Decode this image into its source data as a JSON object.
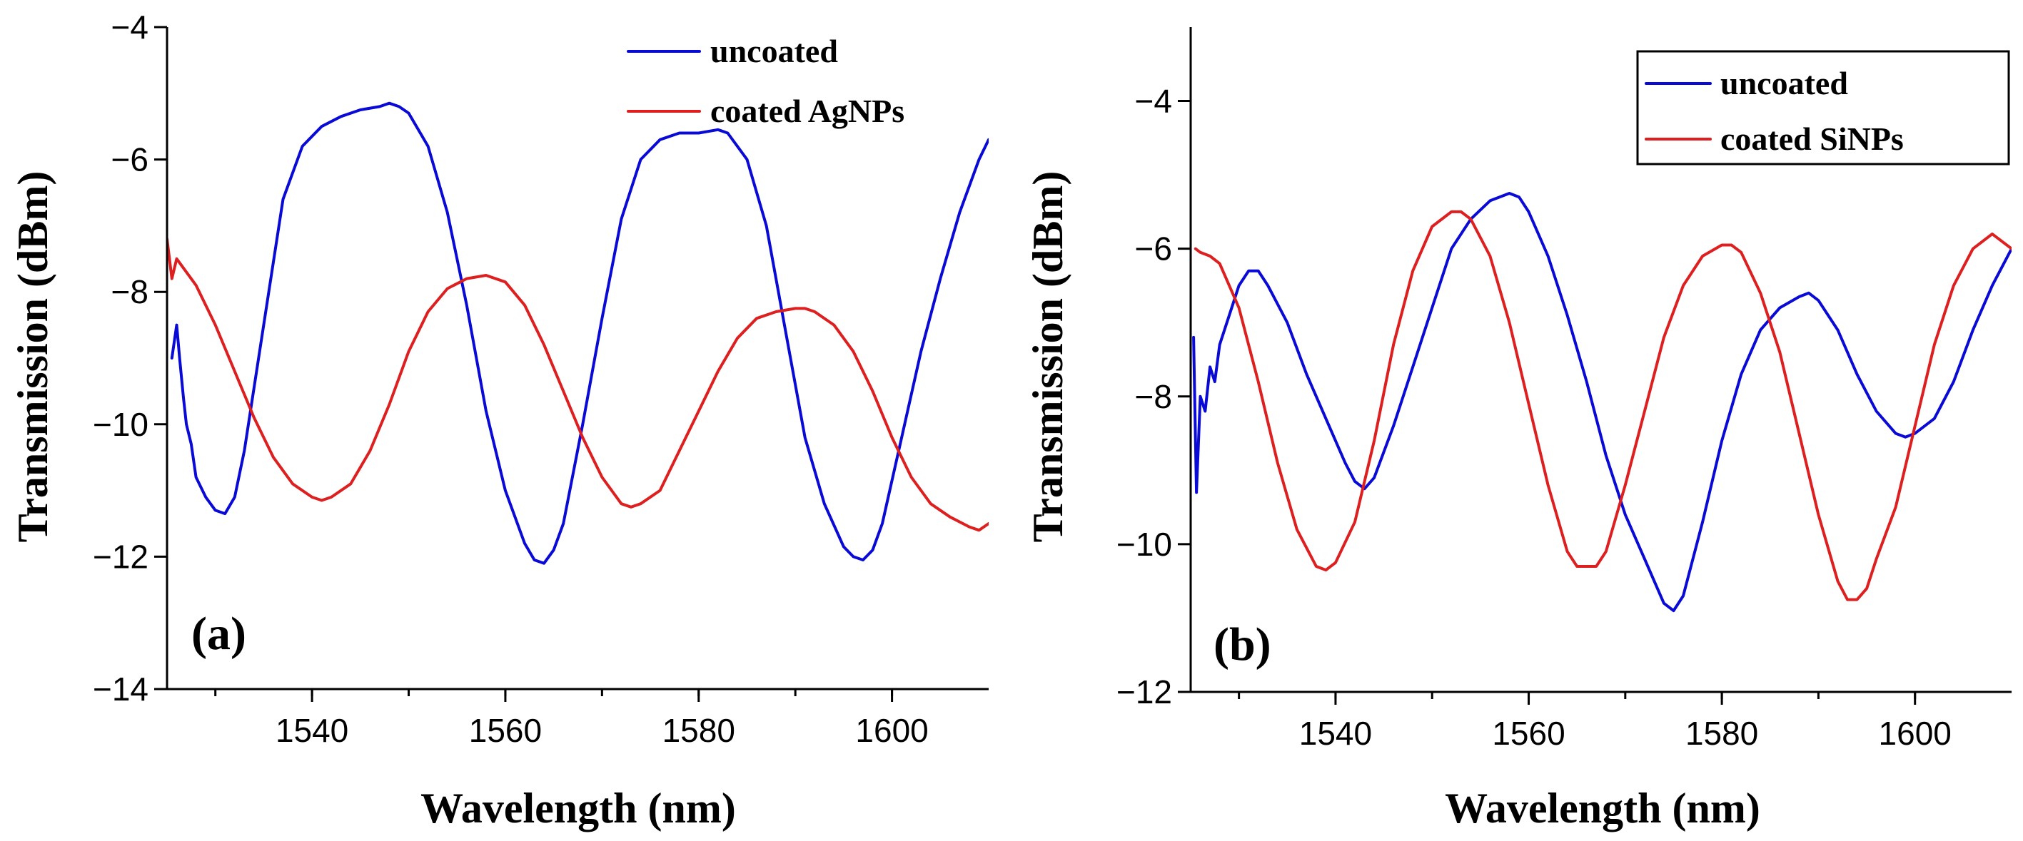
{
  "chart_data": [
    {
      "type": "line",
      "panel_label": "(a)",
      "xlabel": "Wavelength (nm)",
      "ylabel": "Transmission (dBm)",
      "xlim": [
        1525,
        1610
      ],
      "ylim": [
        -14,
        -4
      ],
      "xticks": [
        1540,
        1560,
        1580,
        1600
      ],
      "xtick_labels": [
        "1540",
        "1560",
        "1580",
        "1600"
      ],
      "yticks": [
        -14,
        -12,
        -10,
        -8,
        -6,
        -4
      ],
      "ytick_labels": [
        "−14",
        "−12",
        "−10",
        "−8",
        "−6",
        "−4"
      ],
      "legend_position": "top-right",
      "legend_frame": false,
      "series": [
        {
          "name": "uncoated",
          "color": "#0a0ad6",
          "x": [
            1525.5,
            1526,
            1526.3,
            1526.7,
            1527,
            1527.5,
            1528,
            1529,
            1530,
            1531,
            1532,
            1533,
            1535,
            1537,
            1539,
            1541,
            1543,
            1545,
            1547,
            1548,
            1549,
            1550,
            1552,
            1554,
            1556,
            1558,
            1560,
            1562,
            1563,
            1564,
            1565,
            1566,
            1568,
            1570,
            1572,
            1574,
            1576,
            1578,
            1580,
            1582,
            1583,
            1585,
            1587,
            1589,
            1591,
            1593,
            1595,
            1596,
            1597,
            1598,
            1599,
            1601,
            1603,
            1605,
            1607,
            1609,
            1610
          ],
          "y": [
            -9.0,
            -8.5,
            -9.0,
            -9.6,
            -10.0,
            -10.3,
            -10.8,
            -11.1,
            -11.3,
            -11.35,
            -11.1,
            -10.4,
            -8.5,
            -6.6,
            -5.8,
            -5.5,
            -5.35,
            -5.25,
            -5.2,
            -5.15,
            -5.2,
            -5.3,
            -5.8,
            -6.8,
            -8.2,
            -9.8,
            -11.0,
            -11.8,
            -12.05,
            -12.1,
            -11.9,
            -11.5,
            -10.0,
            -8.4,
            -6.9,
            -6.0,
            -5.7,
            -5.6,
            -5.6,
            -5.55,
            -5.6,
            -6.0,
            -7.0,
            -8.6,
            -10.2,
            -11.2,
            -11.85,
            -12.0,
            -12.05,
            -11.9,
            -11.5,
            -10.2,
            -8.9,
            -7.8,
            -6.8,
            -6.0,
            -5.7
          ]
        },
        {
          "name": "coated AgNPs",
          "color": "#dd1f1f",
          "x": [
            1525,
            1525.5,
            1526,
            1527,
            1528,
            1530,
            1532,
            1534,
            1536,
            1538,
            1540,
            1541,
            1542,
            1544,
            1546,
            1548,
            1550,
            1552,
            1554,
            1556,
            1558,
            1560,
            1562,
            1564,
            1566,
            1568,
            1570,
            1572,
            1573,
            1574,
            1576,
            1578,
            1580,
            1582,
            1584,
            1586,
            1588,
            1590,
            1591,
            1592,
            1594,
            1596,
            1598,
            1600,
            1602,
            1604,
            1606,
            1608,
            1609,
            1610
          ],
          "y": [
            -7.2,
            -7.8,
            -7.5,
            -7.7,
            -7.9,
            -8.5,
            -9.2,
            -9.9,
            -10.5,
            -10.9,
            -11.1,
            -11.15,
            -11.1,
            -10.9,
            -10.4,
            -9.7,
            -8.9,
            -8.3,
            -7.95,
            -7.8,
            -7.75,
            -7.85,
            -8.2,
            -8.8,
            -9.5,
            -10.2,
            -10.8,
            -11.2,
            -11.25,
            -11.2,
            -11.0,
            -10.4,
            -9.8,
            -9.2,
            -8.7,
            -8.4,
            -8.3,
            -8.25,
            -8.25,
            -8.3,
            -8.5,
            -8.9,
            -9.5,
            -10.2,
            -10.8,
            -11.2,
            -11.4,
            -11.55,
            -11.6,
            -11.5
          ]
        }
      ]
    },
    {
      "type": "line",
      "panel_label": "(b)",
      "xlabel": "Wavelength (nm)",
      "ylabel": "Transmission (dBm)",
      "xlim": [
        1525,
        1610
      ],
      "ylim": [
        -12,
        -3
      ],
      "xticks": [
        1540,
        1560,
        1580,
        1600
      ],
      "xtick_labels": [
        "1540",
        "1560",
        "1580",
        "1600"
      ],
      "yticks": [
        -12,
        -10,
        -8,
        -6,
        -4
      ],
      "ytick_labels": [
        "−12",
        "−10",
        "−8",
        "−6",
        "−4"
      ],
      "legend_position": "top-right",
      "legend_frame": true,
      "series": [
        {
          "name": "uncoated",
          "color": "#0a0ad6",
          "x": [
            1525.3,
            1525.6,
            1526,
            1526.5,
            1527,
            1527.5,
            1528,
            1529,
            1530,
            1531,
            1532,
            1533,
            1535,
            1537,
            1539,
            1541,
            1542,
            1543,
            1544,
            1546,
            1548,
            1550,
            1552,
            1554,
            1556,
            1558,
            1559,
            1560,
            1562,
            1564,
            1566,
            1568,
            1570,
            1572,
            1574,
            1575,
            1576,
            1578,
            1580,
            1582,
            1584,
            1586,
            1588,
            1589,
            1590,
            1592,
            1594,
            1596,
            1598,
            1599,
            1600,
            1602,
            1604,
            1606,
            1608,
            1610
          ],
          "y": [
            -7.2,
            -9.3,
            -8.0,
            -8.2,
            -7.6,
            -7.8,
            -7.3,
            -6.9,
            -6.5,
            -6.3,
            -6.3,
            -6.5,
            -7.0,
            -7.7,
            -8.3,
            -8.9,
            -9.15,
            -9.25,
            -9.1,
            -8.4,
            -7.6,
            -6.8,
            -6.0,
            -5.6,
            -5.35,
            -5.25,
            -5.3,
            -5.5,
            -6.1,
            -6.9,
            -7.8,
            -8.8,
            -9.6,
            -10.2,
            -10.8,
            -10.9,
            -10.7,
            -9.7,
            -8.6,
            -7.7,
            -7.1,
            -6.8,
            -6.65,
            -6.6,
            -6.7,
            -7.1,
            -7.7,
            -8.2,
            -8.5,
            -8.55,
            -8.5,
            -8.3,
            -7.8,
            -7.1,
            -6.5,
            -6.0
          ]
        },
        {
          "name": "coated SiNPs",
          "color": "#dd1f1f",
          "x": [
            1525.5,
            1526,
            1527,
            1528,
            1530,
            1532,
            1534,
            1536,
            1538,
            1539,
            1540,
            1542,
            1544,
            1546,
            1548,
            1550,
            1552,
            1553,
            1554,
            1556,
            1558,
            1560,
            1562,
            1564,
            1565,
            1566,
            1567,
            1568,
            1570,
            1572,
            1574,
            1576,
            1578,
            1580,
            1581,
            1582,
            1584,
            1586,
            1588,
            1590,
            1592,
            1593,
            1594,
            1595,
            1596,
            1598,
            1600,
            1602,
            1604,
            1606,
            1608,
            1610
          ],
          "y": [
            -6.0,
            -6.05,
            -6.1,
            -6.2,
            -6.8,
            -7.8,
            -8.9,
            -9.8,
            -10.3,
            -10.35,
            -10.25,
            -9.7,
            -8.6,
            -7.3,
            -6.3,
            -5.7,
            -5.5,
            -5.5,
            -5.6,
            -6.1,
            -7.0,
            -8.1,
            -9.2,
            -10.1,
            -10.3,
            -10.3,
            -10.3,
            -10.1,
            -9.2,
            -8.2,
            -7.2,
            -6.5,
            -6.1,
            -5.95,
            -5.95,
            -6.05,
            -6.6,
            -7.4,
            -8.5,
            -9.6,
            -10.5,
            -10.75,
            -10.75,
            -10.6,
            -10.2,
            -9.5,
            -8.4,
            -7.3,
            -6.5,
            -6.0,
            -5.8,
            -6.0
          ]
        }
      ]
    }
  ]
}
